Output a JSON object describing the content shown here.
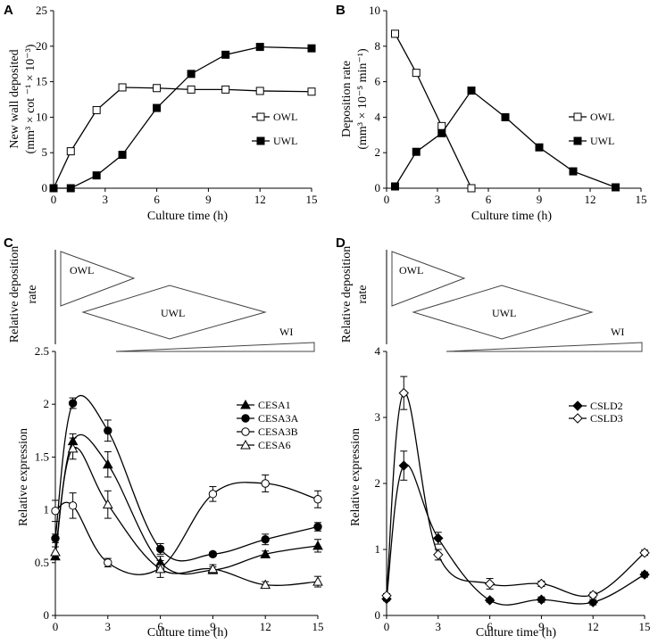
{
  "panels": {
    "A": {
      "letter": "A",
      "chart_data": {
        "type": "line",
        "xlabel": "Culture time (h)",
        "ylabel_line1": "New wall deposited",
        "ylabel_line2": "(mm³ × cot ⁻¹ × 10⁻³)",
        "xlim": [
          0,
          15
        ],
        "ylim": [
          0,
          25
        ],
        "xticks": [
          0,
          3,
          6,
          9,
          12,
          15
        ],
        "yticks": [
          0,
          5,
          10,
          15,
          20,
          25
        ],
        "legend_position": "right",
        "series": [
          {
            "name": "OWL",
            "marker": "open-square",
            "x": [
              0,
              1,
              2.5,
              4,
              6,
              8,
              10,
              12,
              15
            ],
            "y": [
              0,
              5.2,
              11,
              14.2,
              14.1,
              13.9,
              13.9,
              13.7,
              13.6
            ]
          },
          {
            "name": "UWL",
            "marker": "filled-square",
            "x": [
              0,
              1,
              2.5,
              4,
              6,
              8,
              10,
              12,
              15
            ],
            "y": [
              0,
              0,
              1.8,
              4.7,
              11.3,
              16.1,
              18.8,
              19.9,
              19.7
            ]
          }
        ]
      }
    },
    "B": {
      "letter": "B",
      "chart_data": {
        "type": "line",
        "xlabel": "Culture time (h)",
        "ylabel_line1": "Deposition rate",
        "ylabel_line2": "(mm³ × 10⁻⁵ min⁻¹)",
        "xlim": [
          0,
          15
        ],
        "ylim": [
          0,
          10
        ],
        "xticks": [
          0,
          3,
          6,
          9,
          12,
          15
        ],
        "yticks": [
          0,
          2,
          4,
          6,
          8,
          10
        ],
        "legend_position": "right",
        "series": [
          {
            "name": "OWL",
            "marker": "open-square",
            "x": [
              0.5,
              1.75,
              3.25,
              5
            ],
            "y": [
              8.7,
              6.5,
              3.5,
              0
            ]
          },
          {
            "name": "UWL",
            "marker": "filled-square",
            "x": [
              0.5,
              1.75,
              3.25,
              5,
              7,
              9,
              11,
              13.5
            ],
            "y": [
              0.1,
              2.05,
              3.1,
              5.5,
              4.0,
              2.3,
              0.95,
              0.05
            ]
          }
        ]
      }
    },
    "C": {
      "letter": "C",
      "top_ylabel_line1": "Relative deposition",
      "top_ylabel_line2": "rate",
      "shape_labels": {
        "owl": "OWL",
        "uwl": "UWL",
        "wi": "WI"
      },
      "chart_data": {
        "type": "line",
        "xlabel": "Culture time (h)",
        "ylabel": "Relative expression",
        "xlim": [
          0,
          15
        ],
        "ylim": [
          0,
          2.5
        ],
        "xticks": [
          0,
          3,
          6,
          9,
          12,
          15
        ],
        "yticks": [
          0,
          0.5,
          1,
          1.5,
          2,
          2.5
        ],
        "legend_position": "right",
        "series": [
          {
            "name": "CESA1",
            "marker": "filled-triangle",
            "x": [
              0,
              1,
              3,
              6,
              9,
              12,
              15
            ],
            "y": [
              0.56,
              1.65,
              1.43,
              0.5,
              0.43,
              0.58,
              0.66
            ],
            "err": [
              0.03,
              0.07,
              0.12,
              0.06,
              0.03,
              0.03,
              0.06
            ]
          },
          {
            "name": "CESA3A",
            "marker": "filled-circle",
            "x": [
              0,
              1,
              3,
              6,
              9,
              12,
              15
            ],
            "y": [
              0.73,
              2.01,
              1.75,
              0.63,
              0.58,
              0.72,
              0.84
            ],
            "err": [
              0.04,
              0.05,
              0.1,
              0.05,
              0.02,
              0.05,
              0.04
            ]
          },
          {
            "name": "CESA3B",
            "marker": "open-circle",
            "x": [
              0,
              1,
              3,
              6,
              9,
              12,
              15
            ],
            "y": [
              0.99,
              1.04,
              0.5,
              0.45,
              1.15,
              1.25,
              1.1
            ],
            "err": [
              0.1,
              0.12,
              0.04,
              0.04,
              0.07,
              0.08,
              0.08
            ]
          },
          {
            "name": "CESA6",
            "marker": "open-triangle",
            "x": [
              0,
              1,
              3,
              6,
              9,
              12,
              15
            ],
            "y": [
              0.6,
              1.58,
              1.05,
              0.44,
              0.44,
              0.29,
              0.32
            ],
            "err": [
              0.05,
              0.1,
              0.13,
              0.08,
              0.04,
              0.03,
              0.05
            ]
          }
        ]
      }
    },
    "D": {
      "letter": "D",
      "top_ylabel_line1": "Relative deposition",
      "top_ylabel_line2": "rate",
      "shape_labels": {
        "owl": "OWL",
        "uwl": "UWL",
        "wi": "WI"
      },
      "chart_data": {
        "type": "line",
        "xlabel": "Culture time (h)",
        "ylabel": "Relative expression",
        "xlim": [
          0,
          15
        ],
        "ylim": [
          0,
          4
        ],
        "xticks": [
          0,
          3,
          6,
          9,
          12,
          15
        ],
        "yticks": [
          0,
          1,
          2,
          3,
          4
        ],
        "legend_position": "right",
        "series": [
          {
            "name": "CSLD2",
            "marker": "filled-diamond",
            "x": [
              0,
              1,
              3,
              6,
              9,
              12,
              15
            ],
            "y": [
              0.25,
              2.27,
              1.17,
              0.23,
              0.24,
              0.2,
              0.62
            ],
            "err": [
              0.03,
              0.22,
              0.09,
              0.03,
              0.04,
              0.04,
              0.04
            ]
          },
          {
            "name": "CSLD3",
            "marker": "open-diamond",
            "x": [
              0,
              1,
              3,
              6,
              9,
              12,
              15
            ],
            "y": [
              0.3,
              3.37,
              0.92,
              0.48,
              0.48,
              0.31,
              0.95
            ],
            "err": [
              0.03,
              0.25,
              0.08,
              0.08,
              0.04,
              0.04,
              0.04
            ]
          }
        ]
      }
    }
  }
}
